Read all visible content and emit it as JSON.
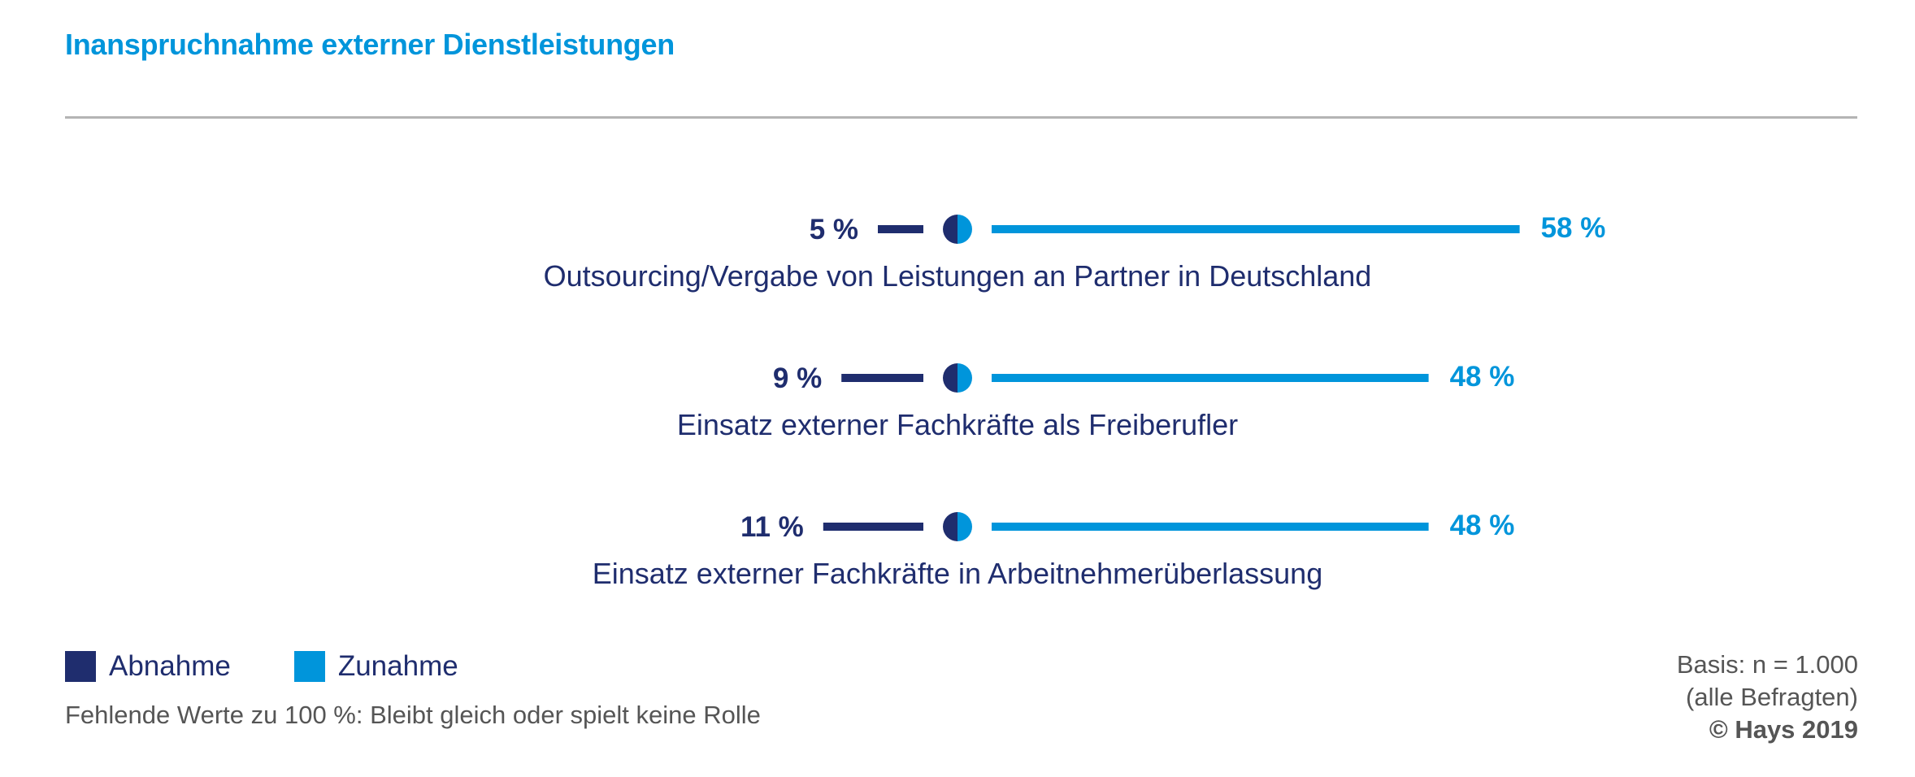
{
  "title": "Inanspruchnahme externer Dienstleistungen",
  "colors": {
    "decrease": "#1f2d6e",
    "increase": "#0095db",
    "rule": "#b4b4b4",
    "note": "#555555"
  },
  "chart_data": {
    "type": "bar",
    "layout": "diverging",
    "categories": [
      "Outsourcing/Vergabe von Leistungen an Partner in Deutschland",
      "Einsatz externer Fachkräfte als Freiberufler",
      "Einsatz externer Fachkräfte in Arbeitnehmerüberlassung"
    ],
    "series": [
      {
        "name": "Abnahme",
        "values": [
          5,
          9,
          11
        ],
        "labels": [
          "5 %",
          "9 %",
          "11 %"
        ],
        "color": "#1f2d6e"
      },
      {
        "name": "Zunahme",
        "values": [
          58,
          48,
          48
        ],
        "labels": [
          "58 %",
          "48 %",
          "48 %"
        ],
        "color": "#0095db"
      }
    ],
    "unit": "%",
    "legend": "bottom-left",
    "grid": false
  },
  "legend": {
    "decrease_label": "Abnahme",
    "increase_label": "Zunahme"
  },
  "note": "Fehlende Werte zu 100 %: Bleibt gleich oder spielt keine Rolle",
  "source": {
    "basis": "Basis: n = 1.000",
    "respondents": "(alle Befragten)",
    "copyright": "© Hays 2019"
  }
}
